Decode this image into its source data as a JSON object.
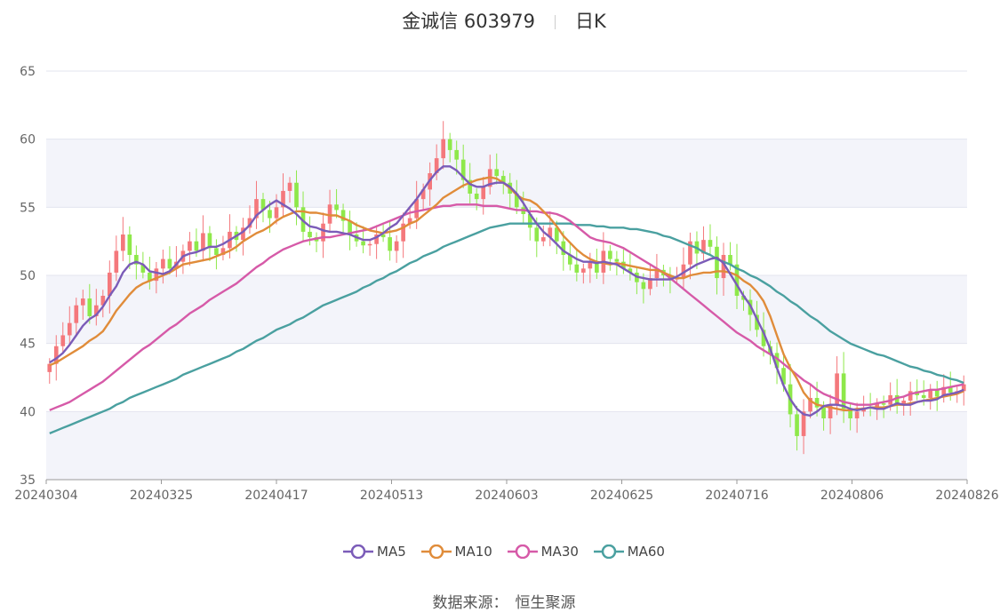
{
  "header": {
    "stock": "金诚信 603979",
    "period": "日K"
  },
  "legend": [
    {
      "name": "MA5",
      "color": "#7b5cb8"
    },
    {
      "name": "MA10",
      "color": "#e08c3a"
    },
    {
      "name": "MA30",
      "color": "#d65aa8"
    },
    {
      "name": "MA60",
      "color": "#4aa0a0"
    }
  ],
  "footer": {
    "label": "数据来源：",
    "value": "恒生聚源"
  },
  "chart_data": {
    "type": "candlestick",
    "ylim": [
      35,
      65
    ],
    "yticks": [
      35,
      40,
      45,
      50,
      55,
      60,
      65
    ],
    "xticks": [
      "20240304",
      "20240325",
      "20240417",
      "20240513",
      "20240603",
      "20240625",
      "20240716",
      "20240806",
      "20240826"
    ],
    "colors": {
      "up": "#f4787c",
      "down": "#8ee84a"
    },
    "close": [
      43.5,
      44.8,
      45.6,
      46.5,
      47.8,
      48.3,
      47.0,
      47.8,
      48.5,
      50.2,
      51.8,
      53.0,
      51.5,
      50.8,
      50.2,
      49.6,
      50.5,
      51.2,
      50.5,
      51.0,
      51.8,
      52.5,
      51.8,
      53.1,
      52.0,
      51.5,
      52.0,
      53.2,
      52.6,
      53.5,
      54.2,
      55.6,
      54.8,
      54.2,
      55.0,
      56.2,
      56.8,
      55.0,
      53.2,
      52.8,
      52.5,
      53.8,
      55.2,
      54.8,
      54.0,
      53.0,
      52.5,
      52.2,
      52.3,
      53.0,
      52.8,
      51.8,
      52.5,
      53.8,
      54.2,
      55.6,
      56.3,
      57.5,
      58.6,
      60.0,
      59.2,
      58.5,
      57.0,
      56.0,
      55.6,
      56.5,
      57.8,
      57.3,
      56.8,
      56.0,
      55.0,
      54.5,
      53.5,
      52.5,
      52.8,
      53.5,
      52.5,
      51.5,
      50.8,
      50.2,
      50.5,
      51.0,
      50.2,
      51.8,
      51.2,
      51.0,
      50.5,
      50.2,
      49.5,
      49.0,
      49.8,
      50.4,
      50.0,
      49.7,
      49.8,
      50.8,
      52.5,
      51.6,
      52.6,
      52.1,
      49.8,
      51.5,
      50.8,
      48.5,
      48.2,
      47.1,
      46.0,
      44.8,
      44.3,
      43.2,
      42.0,
      39.8,
      38.2,
      40.0,
      41.0,
      40.3,
      39.5,
      40.5,
      42.8,
      40.2,
      39.5,
      40.0,
      40.3,
      40.2,
      40.6,
      40.5,
      41.2,
      40.5,
      40.8,
      41.5,
      41.2,
      41.0,
      41.6,
      41.1,
      41.8,
      41.4,
      41.5,
      42.0
    ],
    "ma5": [
      43.6,
      43.9,
      44.3,
      44.9,
      45.6,
      46.3,
      46.8,
      47.1,
      47.7,
      48.5,
      49.2,
      50.2,
      50.8,
      51.0,
      50.8,
      50.3,
      50.2,
      50.1,
      50.3,
      50.8,
      51.4,
      51.6,
      51.7,
      51.9,
      52.1,
      52.1,
      52.3,
      52.6,
      52.9,
      53.2,
      53.7,
      54.4,
      54.8,
      55.2,
      55.5,
      55.2,
      54.9,
      54.5,
      54.0,
      53.6,
      53.5,
      53.3,
      53.2,
      53.2,
      53.1,
      53.0,
      52.8,
      52.6,
      52.6,
      52.8,
      53.1,
      53.5,
      53.8,
      54.4,
      55.0,
      55.6,
      56.3,
      57.0,
      57.6,
      58.0,
      58.0,
      57.7,
      57.2,
      56.7,
      56.5,
      56.5,
      56.7,
      56.8,
      56.8,
      56.5,
      56.0,
      55.3,
      54.5,
      53.8,
      53.2,
      52.8,
      52.3,
      51.8,
      51.5,
      51.2,
      51.0,
      51.0,
      50.9,
      51.0,
      50.9,
      50.8,
      50.5,
      50.2,
      49.9,
      49.8,
      49.7,
      49.7,
      49.7,
      49.7,
      49.9,
      50.2,
      50.5,
      50.8,
      51.0,
      51.2,
      51.3,
      50.9,
      50.1,
      49.3,
      48.5,
      47.8,
      46.8,
      45.8,
      44.6,
      43.2,
      41.9,
      40.9,
      40.2,
      39.8,
      39.7,
      40.0,
      40.4,
      40.5,
      40.5,
      40.4,
      40.2,
      40.1,
      40.2,
      40.3,
      40.2,
      40.2,
      40.4,
      40.6,
      40.5,
      40.5,
      40.7,
      40.8,
      40.8,
      40.9,
      41.2,
      41.3,
      41.4,
      41.6
    ],
    "ma10": [
      43.4,
      43.6,
      43.9,
      44.2,
      44.5,
      44.8,
      45.2,
      45.5,
      45.9,
      46.6,
      47.4,
      48.0,
      48.6,
      49.1,
      49.4,
      49.6,
      49.8,
      50.0,
      50.2,
      50.5,
      50.8,
      50.9,
      51.0,
      51.1,
      51.2,
      51.4,
      51.6,
      51.8,
      52.1,
      52.5,
      52.8,
      53.1,
      53.3,
      53.6,
      54.0,
      54.3,
      54.5,
      54.7,
      54.7,
      54.6,
      54.6,
      54.5,
      54.4,
      54.4,
      54.2,
      54.0,
      53.7,
      53.5,
      53.3,
      53.2,
      53.1,
      53.2,
      53.3,
      53.5,
      53.8,
      54.0,
      54.4,
      54.8,
      55.2,
      55.7,
      56.0,
      56.3,
      56.6,
      56.8,
      57.0,
      57.1,
      57.2,
      57.1,
      56.8,
      56.4,
      55.9,
      55.6,
      55.5,
      55.2,
      54.7,
      54.2,
      53.6,
      52.9,
      52.4,
      51.9,
      51.5,
      51.2,
      51.0,
      50.9,
      50.8,
      50.9,
      50.8,
      50.7,
      50.6,
      50.5,
      50.4,
      50.4,
      50.2,
      50.0,
      49.8,
      49.8,
      50.0,
      50.1,
      50.2,
      50.2,
      50.3,
      50.3,
      50.2,
      50.0,
      49.6,
      49.3,
      48.8,
      48.1,
      47.0,
      45.6,
      44.2,
      43.2,
      42.4,
      41.4,
      40.8,
      40.5,
      40.4,
      40.3,
      40.2,
      40.1,
      40.1,
      40.2,
      40.2,
      40.3,
      40.3,
      40.3,
      40.4,
      40.5,
      40.5,
      40.6,
      40.7,
      40.8,
      40.9,
      41.0,
      41.1,
      41.2,
      41.3,
      41.5
    ],
    "ma30": [
      40.1,
      40.3,
      40.5,
      40.7,
      41.0,
      41.3,
      41.6,
      41.9,
      42.2,
      42.6,
      43.0,
      43.4,
      43.8,
      44.2,
      44.6,
      44.9,
      45.3,
      45.7,
      46.1,
      46.4,
      46.8,
      47.2,
      47.5,
      47.8,
      48.2,
      48.5,
      48.8,
      49.1,
      49.4,
      49.8,
      50.2,
      50.6,
      50.9,
      51.3,
      51.6,
      51.9,
      52.1,
      52.3,
      52.5,
      52.6,
      52.7,
      52.8,
      52.8,
      52.9,
      53.0,
      53.1,
      53.2,
      53.3,
      53.4,
      53.6,
      53.8,
      54.0,
      54.2,
      54.4,
      54.6,
      54.7,
      54.8,
      54.9,
      55.0,
      55.1,
      55.1,
      55.2,
      55.2,
      55.2,
      55.2,
      55.1,
      55.1,
      55.1,
      55.0,
      54.9,
      54.8,
      54.8,
      54.7,
      54.7,
      54.6,
      54.6,
      54.5,
      54.3,
      54.0,
      53.6,
      53.2,
      52.8,
      52.6,
      52.5,
      52.4,
      52.2,
      52.0,
      51.7,
      51.4,
      51.1,
      50.8,
      50.5,
      50.2,
      49.8,
      49.4,
      49.0,
      48.6,
      48.2,
      47.8,
      47.4,
      47.0,
      46.6,
      46.2,
      45.8,
      45.5,
      45.2,
      44.8,
      44.5,
      44.2,
      43.9,
      43.5,
      43.1,
      42.7,
      42.3,
      42.0,
      41.6,
      41.3,
      41.1,
      40.9,
      40.7,
      40.6,
      40.5,
      40.5,
      40.5,
      40.6,
      40.7,
      40.8,
      41.0,
      41.1,
      41.3,
      41.4,
      41.5,
      41.6,
      41.6,
      41.7,
      41.8,
      41.9,
      42.0
    ],
    "ma60": [
      38.4,
      38.6,
      38.8,
      39.0,
      39.2,
      39.4,
      39.6,
      39.8,
      40.0,
      40.2,
      40.5,
      40.7,
      41.0,
      41.2,
      41.4,
      41.6,
      41.8,
      42.0,
      42.2,
      42.4,
      42.7,
      42.9,
      43.1,
      43.3,
      43.5,
      43.7,
      43.9,
      44.1,
      44.4,
      44.6,
      44.9,
      45.2,
      45.4,
      45.7,
      46.0,
      46.2,
      46.4,
      46.7,
      46.9,
      47.2,
      47.5,
      47.8,
      48.0,
      48.2,
      48.4,
      48.6,
      48.8,
      49.1,
      49.3,
      49.6,
      49.8,
      50.1,
      50.3,
      50.6,
      50.9,
      51.1,
      51.4,
      51.6,
      51.8,
      52.1,
      52.3,
      52.5,
      52.7,
      52.9,
      53.1,
      53.3,
      53.5,
      53.6,
      53.7,
      53.8,
      53.8,
      53.8,
      53.8,
      53.8,
      53.8,
      53.8,
      53.8,
      53.8,
      53.8,
      53.7,
      53.7,
      53.7,
      53.6,
      53.6,
      53.5,
      53.5,
      53.5,
      53.4,
      53.4,
      53.3,
      53.2,
      53.1,
      52.9,
      52.8,
      52.6,
      52.4,
      52.2,
      52.0,
      51.7,
      51.5,
      51.2,
      51.0,
      50.8,
      50.5,
      50.3,
      50.0,
      49.8,
      49.5,
      49.2,
      48.8,
      48.5,
      48.1,
      47.8,
      47.4,
      47.0,
      46.7,
      46.3,
      45.9,
      45.6,
      45.3,
      45.0,
      44.8,
      44.6,
      44.4,
      44.2,
      44.1,
      43.9,
      43.7,
      43.5,
      43.3,
      43.2,
      43.0,
      42.9,
      42.7,
      42.6,
      42.4,
      42.3,
      42.1
    ]
  }
}
